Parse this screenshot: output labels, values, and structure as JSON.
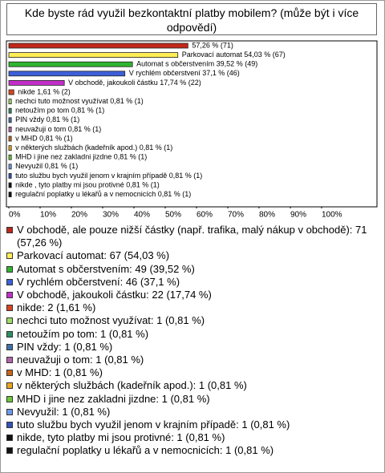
{
  "chart_data": {
    "type": "bar",
    "orientation": "horizontal",
    "title": "Kde byste rád využil bezkontaktní platby mobilem? (může být i více odpovědí)",
    "values": [
      57.26,
      54.03,
      39.52,
      37.1,
      17.74,
      1.61,
      0.81,
      0.81,
      0.81,
      0.81,
      0.81,
      0.81,
      0.81,
      0.81,
      0.81,
      0.81,
      0.81
    ],
    "value_labels": [
      "57,26 % (71)",
      "Parkovací automat 54,03 % (67)",
      "Automat s občerstvením 39,52 % (49)",
      "V rychlém občerstvení 37,1 % (46)",
      "V obchodě, jakoukoli částku 17,74 % (22)",
      "nikde 1,61 % (2)",
      "nechci tuto možnost využívat 0,81 % (1)",
      "netoužím po tom 0,81 % (1)",
      "PIN vždy 0,81 % (1)",
      "neuvažuji o tom 0,81 % (1)",
      "v MHD 0,81 % (1)",
      "v některých službách (kadeřník apod.) 0,81 % (1)",
      "MHD i jine nez zakladni jizdne 0,81 % (1)",
      "Nevyužil 0,81 % (1)",
      "tuto službu bych využil jenom v krajním případě 0,81 % (1)",
      "nikde , tyto platby mi jsou protivné 0,81 % (1)",
      "regulační poplatky u lékařů a v nemocnicích 0,81 % (1)"
    ],
    "legend": [
      "V obchodě, ale pouze nižší částky (např. trafika, malý nákup v obchodě): 71 (57,26 %)",
      "Parkovací automat: 67 (54,03 %)",
      "Automat s občerstvením: 49 (39,52 %)",
      "V rychlém občerstvení: 46 (37,1 %)",
      "V obchodě, jakoukoli částku: 22 (17,74 %)",
      "nikde: 2 (1,61 %)",
      "nechci tuto možnost využívat: 1 (0,81 %)",
      "netoužím po tom: 1 (0,81 %)",
      "PIN vždy: 1 (0,81 %)",
      "neuvažuji o tom: 1 (0,81 %)",
      "v MHD: 1 (0,81 %)",
      "v některých službách (kadeřník apod.): 1 (0,81 %)",
      "MHD i jine nez zakladni jizdne: 1 (0,81 %)",
      "Nevyužil: 1 (0,81 %)",
      "tuto službu bych využil jenom v krajním případě: 1 (0,81 %)",
      "nikde, tyto platby mi jsou protivné: 1 (0,81 %)",
      "regulační poplatky u lékařů a v nemocnicích: 1 (0,81 %)"
    ],
    "colors": [
      "#c0281a",
      "#ffee55",
      "#2fb52f",
      "#3d5fd8",
      "#c22fc8",
      "#d8451f",
      "#9fdc66",
      "#2f8f62",
      "#3f72a8",
      "#b565a6",
      "#c8651a",
      "#e8a81e",
      "#6cc83a",
      "#6f98ea",
      "#3552b8",
      "#111111",
      "#111111"
    ],
    "xlim": [
      0,
      100
    ],
    "xticks": [
      {
        "value": 0,
        "label": "0%"
      },
      {
        "value": 10,
        "label": "10%"
      },
      {
        "value": 20,
        "label": "20%"
      },
      {
        "value": 30,
        "label": "30%"
      },
      {
        "value": 40,
        "label": "40%"
      },
      {
        "value": 50,
        "label": "50%"
      },
      {
        "value": 60,
        "label": "60%"
      },
      {
        "value": 70,
        "label": "70%"
      },
      {
        "value": 80,
        "label": "80%"
      },
      {
        "value": 90,
        "label": "90%"
      },
      {
        "value": 100,
        "label": "100%"
      }
    ]
  }
}
